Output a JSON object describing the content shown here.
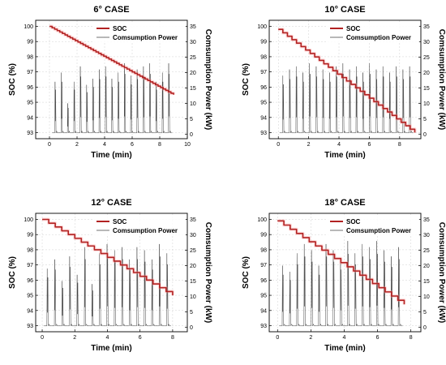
{
  "chart_data": [
    {
      "type": "line",
      "title": "6° CASE",
      "xlabel": "Time (min)",
      "ylabel": "SOC (%)",
      "y2label": "Comsumption Power (kW)",
      "xlim": [
        -1,
        10
      ],
      "xticks": [
        0,
        2,
        4,
        6,
        8,
        10
      ],
      "ylim": [
        92.6,
        100.4
      ],
      "yticks": [
        93,
        94,
        95,
        96,
        97,
        98,
        99,
        100
      ],
      "y2lim": [
        -1.5,
        37
      ],
      "y2ticks": [
        0,
        5,
        10,
        15,
        20,
        25,
        30,
        35
      ],
      "legend_position": "top-right",
      "grid": true,
      "series": [
        {
          "name": "SOC",
          "axis": "left",
          "color": "#b22222",
          "x": [
            0,
            9
          ],
          "y": [
            100.0,
            95.5
          ],
          "steps": 48
        },
        {
          "name": "Comsumption Power",
          "axis": "right",
          "color": "#333333",
          "x_start": 0.2,
          "x_end": 8.9,
          "peaks": [
            17,
            20,
            10,
            17,
            22,
            16,
            18,
            21,
            22,
            18,
            20,
            23,
            19,
            21,
            22,
            23,
            17,
            20,
            23
          ],
          "base": 0.4
        }
      ]
    },
    {
      "type": "line",
      "title": "10° CASE",
      "xlabel": "Time (min)",
      "ylabel": "SOC (%)",
      "y2label": "Comsumption Power (kW)",
      "xlim": [
        -0.6,
        9.4
      ],
      "xticks": [
        0,
        2,
        4,
        6,
        8
      ],
      "ylim": [
        92.6,
        100.4
      ],
      "yticks": [
        93,
        94,
        95,
        96,
        97,
        98,
        99,
        100
      ],
      "y2lim": [
        -1.5,
        37
      ],
      "y2ticks": [
        0,
        5,
        10,
        15,
        20,
        25,
        30,
        35
      ],
      "legend_position": "top-right",
      "grid": true,
      "series": [
        {
          "name": "SOC",
          "axis": "left",
          "color": "#b22222",
          "x": [
            0,
            9
          ],
          "y": [
            99.8,
            93.0
          ],
          "steps": 30
        },
        {
          "name": "Comsumption Power",
          "axis": "right",
          "color": "#333333",
          "x_start": 0.1,
          "x_end": 8.9,
          "peaks": [
            19,
            21,
            22,
            20,
            23,
            22,
            21,
            20,
            22,
            23,
            21,
            22,
            20,
            23,
            21,
            22,
            20,
            22,
            21,
            22
          ],
          "base": 0.4
        }
      ]
    },
    {
      "type": "line",
      "title": "12° CASE",
      "xlabel": "Time (min)",
      "ylabel": "SOC (%)",
      "y2label": "Comsumption Power (kW)",
      "xlim": [
        -0.4,
        8.9
      ],
      "xticks": [
        0,
        2,
        4,
        6,
        8
      ],
      "ylim": [
        92.6,
        100.4
      ],
      "yticks": [
        93,
        94,
        95,
        96,
        97,
        98,
        99,
        100
      ],
      "y2lim": [
        -1.5,
        37
      ],
      "y2ticks": [
        0,
        5,
        10,
        15,
        20,
        25,
        30,
        35
      ],
      "legend_position": "top-right",
      "grid": true,
      "series": [
        {
          "name": "SOC",
          "axis": "left",
          "color": "#b22222",
          "x": [
            0,
            8
          ],
          "y": [
            100.0,
            95.0
          ],
          "steps": 20
        },
        {
          "name": "Comsumption Power",
          "axis": "right",
          "color": "#333333",
          "x_start": 0.1,
          "x_end": 7.9,
          "peaks": [
            19,
            22,
            15,
            23,
            17,
            26,
            14,
            24,
            27,
            25,
            26,
            22,
            26,
            25,
            22,
            27,
            24
          ],
          "base": 0.4
        }
      ]
    },
    {
      "type": "line",
      "title": "18° CASE",
      "xlabel": "Time (min)",
      "ylabel": "SOC (%)",
      "y2label": "Comsumption Power (kW)",
      "xlim": [
        -0.5,
        8.6
      ],
      "xticks": [
        0,
        2,
        4,
        6,
        8
      ],
      "ylim": [
        92.6,
        100.4
      ],
      "yticks": [
        93,
        94,
        95,
        96,
        97,
        98,
        99,
        100
      ],
      "y2lim": [
        -1.5,
        37
      ],
      "y2ticks": [
        0,
        5,
        10,
        15,
        20,
        25,
        30,
        35
      ],
      "legend_position": "top-right",
      "grid": true,
      "series": [
        {
          "name": "SOC",
          "axis": "left",
          "color": "#b22222",
          "x": [
            0,
            7.6
          ],
          "y": [
            99.9,
            94.4
          ],
          "steps": 20
        },
        {
          "name": "Comsumption Power",
          "axis": "right",
          "color": "#333333",
          "x_start": 0.1,
          "x_end": 7.5,
          "peaks": [
            20,
            18,
            24,
            27,
            25,
            20,
            27,
            25,
            22,
            28,
            24,
            27,
            26,
            28,
            25,
            23,
            26
          ],
          "base": 0.4
        }
      ]
    }
  ]
}
